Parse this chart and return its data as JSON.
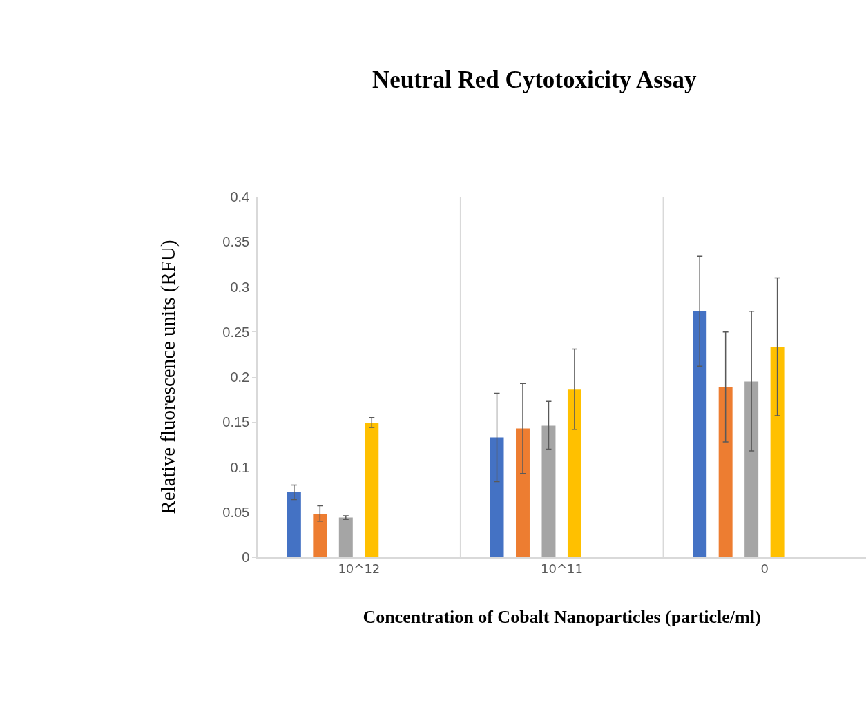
{
  "chart_data": {
    "type": "bar",
    "title": "Neutral Red Cytotoxicity Assay",
    "xlabel": "Concentration of Cobalt Nanoparticles (particle/ml)",
    "ylabel": "Relative fluorescence units (RFU)",
    "categories": [
      "10^12",
      "10^11",
      "0"
    ],
    "series": [
      {
        "color": "#4472c4",
        "values": [
          0.072,
          0.133,
          0.273
        ],
        "errors": [
          [
            0.064,
            0.08
          ],
          [
            0.084,
            0.182
          ],
          [
            0.212,
            0.334
          ]
        ]
      },
      {
        "color": "#ed7d31",
        "values": [
          0.048,
          0.143,
          0.189
        ],
        "errors": [
          [
            0.04,
            0.057
          ],
          [
            0.093,
            0.193
          ],
          [
            0.128,
            0.25
          ]
        ]
      },
      {
        "color": "#a5a5a5",
        "values": [
          0.044,
          0.146,
          0.195
        ],
        "errors": [
          [
            0.042,
            0.046
          ],
          [
            0.12,
            0.173
          ],
          [
            0.118,
            0.273
          ]
        ]
      },
      {
        "color": "#ffc000",
        "values": [
          0.149,
          0.186,
          0.233
        ],
        "errors": [
          [
            0.144,
            0.155
          ],
          [
            0.142,
            0.231
          ],
          [
            0.157,
            0.31
          ]
        ]
      }
    ],
    "ylim": [
      0,
      0.4
    ],
    "yticks": [
      0,
      0.05,
      0.1,
      0.15,
      0.2,
      0.25,
      0.3,
      0.35,
      0.4
    ],
    "grid": "x"
  }
}
